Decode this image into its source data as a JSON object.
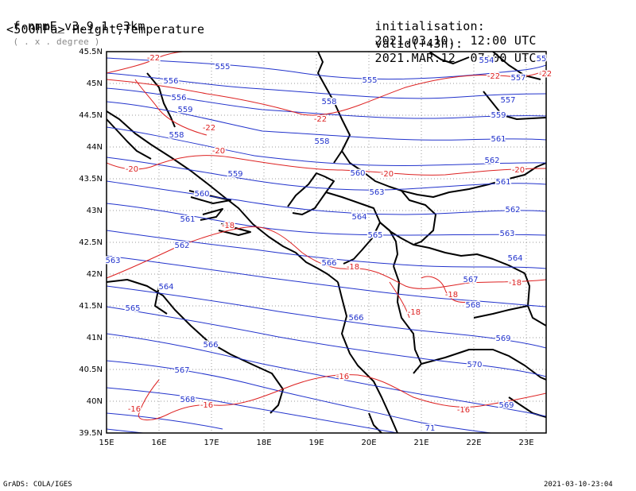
{
  "header": {
    "model": "f-nmmE_v3.9.1-e3km",
    "units": "( . x . degree )",
    "level_fields": "<500hPa> Height,Temperature",
    "init_label": "initialisation:",
    "init_value": "2021.03.10.  12:00 UTC",
    "valid_label": "valid(+43h):",
    "valid_value": "2021.MAR.12  07:00 UTC"
  },
  "footer": {
    "credit": "GrADS: COLA/IGES",
    "timestamp": "2021-03-10-23:04"
  },
  "map": {
    "lat_labels": [
      "45.5N",
      "45N",
      "44.5N",
      "44N",
      "43.5N",
      "43N",
      "42.5N",
      "42N",
      "41.5N",
      "41N",
      "40.5N",
      "40N",
      "39.5N"
    ],
    "lon_labels": [
      "15E",
      "16E",
      "17E",
      "18E",
      "19E",
      "20E",
      "21E",
      "22E",
      "23E"
    ],
    "height_color": "#2233cc",
    "temp_color": "#dd2222",
    "height_labels": [
      "555",
      "554",
      "55",
      "556",
      "555",
      "557",
      "556",
      "558",
      "557",
      "559",
      "558",
      "559",
      "558",
      "561",
      "560",
      "559",
      "562",
      "561",
      "560",
      "563",
      "562",
      "561",
      "564",
      "563",
      "562",
      "565",
      "564",
      "563",
      "566",
      "564",
      "567",
      "565",
      "566",
      "568",
      "566",
      "569",
      "567",
      "570",
      "568",
      "569",
      "71"
    ],
    "temp_labels": [
      "-22",
      "-22",
      "-22",
      "-22",
      "-22",
      "-20",
      "-20",
      "-20",
      "-20",
      "-18",
      "-18",
      "-18",
      "-18",
      "-18",
      "-16",
      "-16",
      "-16",
      "-16"
    ]
  }
}
